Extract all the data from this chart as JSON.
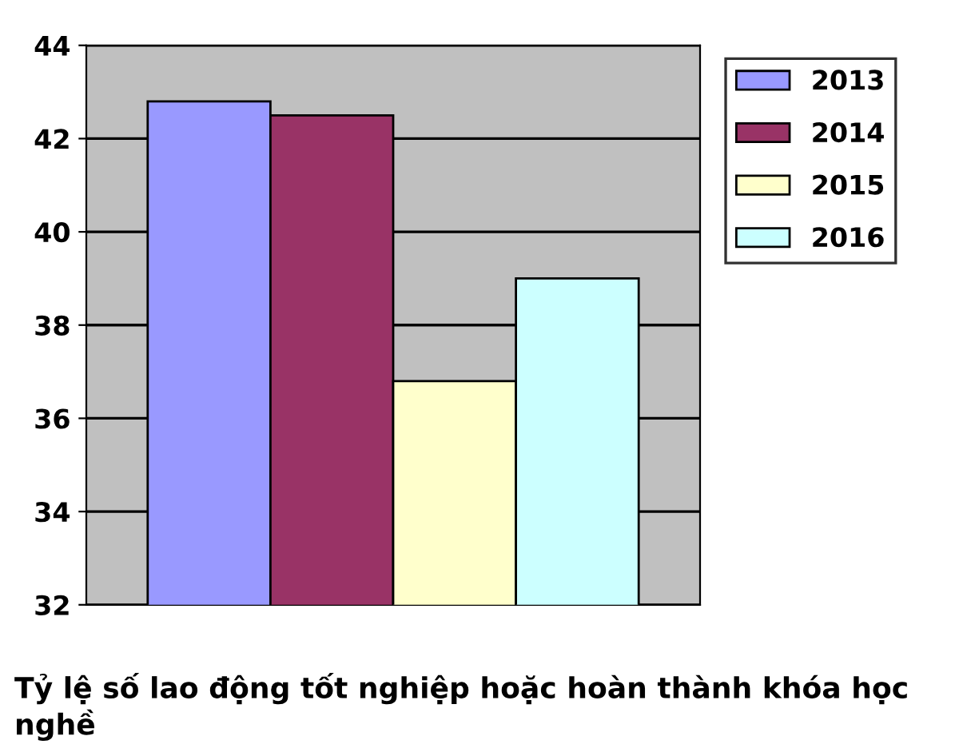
{
  "chart_data": {
    "type": "bar",
    "title": "Tỷ lệ số lao động tốt nghiệp hoặc hoàn thành khóa học nghề",
    "categories": [
      null
    ],
    "series": [
      {
        "name": "2013",
        "color": "#9999ff",
        "values": [
          42.8
        ]
      },
      {
        "name": "2014",
        "color": "#993366",
        "values": [
          42.5
        ]
      },
      {
        "name": "2015",
        "color": "#ffffcc",
        "values": [
          36.8
        ]
      },
      {
        "name": "2016",
        "color": "#ccffff",
        "values": [
          39.0
        ]
      }
    ],
    "ylim": [
      32,
      44
    ],
    "yticks": [
      32,
      34,
      36,
      38,
      40,
      42,
      44
    ],
    "grid": "y",
    "legend": "right",
    "tick_labels": "y"
  }
}
